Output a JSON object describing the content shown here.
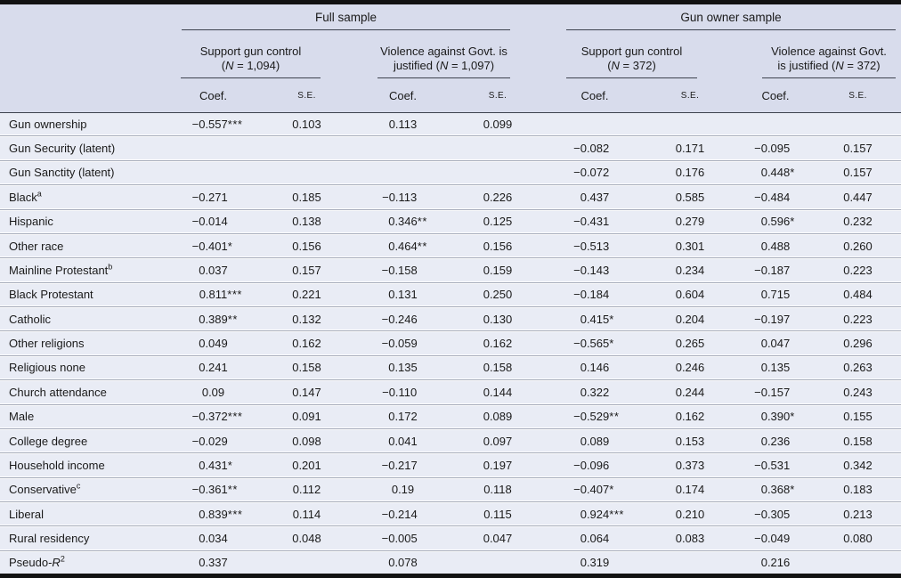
{
  "colors": {
    "header_bg": "#d8dcec",
    "row_bg": "#e9ecf5",
    "bar": "#121212",
    "text": "#1a1a1a",
    "header_rule": "#3d424e",
    "row_divider": "#a3a9b8"
  },
  "table": {
    "groups": [
      {
        "label": "Full sample"
      },
      {
        "label": "Gun owner sample"
      }
    ],
    "subgroups": [
      {
        "lines": [
          [
            {
              "t": "Support gun control"
            }
          ],
          [
            {
              "t": "("
            },
            {
              "t": "N",
              "i": true
            },
            {
              "t": " = 1,094)"
            }
          ]
        ]
      },
      {
        "lines": [
          [
            {
              "t": "Violence against Govt. is"
            }
          ],
          [
            {
              "t": "justified ("
            },
            {
              "t": "N",
              "i": true
            },
            {
              "t": " = 1,097)"
            }
          ]
        ]
      },
      {
        "lines": [
          [
            {
              "t": "Support gun control"
            }
          ],
          [
            {
              "t": "("
            },
            {
              "t": "N",
              "i": true
            },
            {
              "t": " = 372)"
            }
          ]
        ]
      },
      {
        "lines": [
          [
            {
              "t": "Violence against Govt."
            }
          ],
          [
            {
              "t": "is justified ("
            },
            {
              "t": "N",
              "i": true
            },
            {
              "t": " = 372)"
            }
          ]
        ]
      }
    ],
    "col_headers": {
      "coef": "Coef.",
      "se": "S.E."
    },
    "rows": [
      {
        "label": [
          {
            "t": "Gun ownership"
          }
        ],
        "cells": [
          "−0.557***",
          "0.103",
          "0.113",
          "0.099",
          "",
          "",
          "",
          ""
        ]
      },
      {
        "label": [
          {
            "t": "Gun Security (latent)"
          }
        ],
        "cells": [
          "",
          "",
          "",
          "",
          "−0.082",
          "0.171",
          "−0.095",
          "0.157"
        ]
      },
      {
        "label": [
          {
            "t": "Gun Sanctity (latent)"
          }
        ],
        "cells": [
          "",
          "",
          "",
          "",
          "−0.072",
          "0.176",
          "0.448*",
          "0.157"
        ]
      },
      {
        "label": [
          {
            "t": "Black"
          },
          {
            "t": "a",
            "sup": true
          }
        ],
        "cells": [
          "−0.271",
          "0.185",
          "−0.113",
          "0.226",
          "0.437",
          "0.585",
          "−0.484",
          "0.447"
        ]
      },
      {
        "label": [
          {
            "t": "Hispanic"
          }
        ],
        "cells": [
          "−0.014",
          "0.138",
          "0.346**",
          "0.125",
          "−0.431",
          "0.279",
          "0.596*",
          "0.232"
        ]
      },
      {
        "label": [
          {
            "t": "Other race"
          }
        ],
        "cells": [
          "−0.401*",
          "0.156",
          "0.464**",
          "0.156",
          "−0.513",
          "0.301",
          "0.488",
          "0.260"
        ]
      },
      {
        "label": [
          {
            "t": "Mainline Protestant"
          },
          {
            "t": "b",
            "sup": true
          }
        ],
        "cells": [
          "0.037",
          "0.157",
          "−0.158",
          "0.159",
          "−0.143",
          "0.234",
          "−0.187",
          "0.223"
        ]
      },
      {
        "label": [
          {
            "t": "Black Protestant"
          }
        ],
        "cells": [
          "0.811***",
          "0.221",
          "0.131",
          "0.250",
          "−0.184",
          "0.604",
          "0.715",
          "0.484"
        ]
      },
      {
        "label": [
          {
            "t": "Catholic"
          }
        ],
        "cells": [
          "0.389**",
          "0.132",
          "−0.246",
          "0.130",
          "0.415*",
          "0.204",
          "−0.197",
          "0.223"
        ]
      },
      {
        "label": [
          {
            "t": "Other religions"
          }
        ],
        "cells": [
          "0.049",
          "0.162",
          "−0.059",
          "0.162",
          "−0.565*",
          "0.265",
          "0.047",
          "0.296"
        ]
      },
      {
        "label": [
          {
            "t": "Religious none"
          }
        ],
        "cells": [
          "0.241",
          "0.158",
          "0.135",
          "0.158",
          "0.146",
          "0.246",
          "0.135",
          "0.263"
        ]
      },
      {
        "label": [
          {
            "t": "Church attendance"
          }
        ],
        "cells": [
          "0.09",
          "0.147",
          "−0.110",
          "0.144",
          "0.322",
          "0.244",
          "−0.157",
          "0.243"
        ]
      },
      {
        "label": [
          {
            "t": "Male"
          }
        ],
        "cells": [
          "−0.372***",
          "0.091",
          "0.172",
          "0.089",
          "−0.529**",
          "0.162",
          "0.390*",
          "0.155"
        ]
      },
      {
        "label": [
          {
            "t": "College degree"
          }
        ],
        "cells": [
          "−0.029",
          "0.098",
          "0.041",
          "0.097",
          "0.089",
          "0.153",
          "0.236",
          "0.158"
        ]
      },
      {
        "label": [
          {
            "t": "Household income"
          }
        ],
        "cells": [
          "0.431*",
          "0.201",
          "−0.217",
          "0.197",
          "−0.096",
          "0.373",
          "−0.531",
          "0.342"
        ]
      },
      {
        "label": [
          {
            "t": "Conservative"
          },
          {
            "t": "c",
            "sup": true
          }
        ],
        "cells": [
          "−0.361**",
          "0.112",
          "0.19",
          "0.118",
          "−0.407*",
          "0.174",
          "0.368*",
          "0.183"
        ]
      },
      {
        "label": [
          {
            "t": "Liberal"
          }
        ],
        "cells": [
          "0.839***",
          "0.114",
          "−0.214",
          "0.115",
          "0.924***",
          "0.210",
          "−0.305",
          "0.213"
        ]
      },
      {
        "label": [
          {
            "t": "Rural residency"
          }
        ],
        "cells": [
          "0.034",
          "0.048",
          "−0.005",
          "0.047",
          "0.064",
          "0.083",
          "−0.049",
          "0.080"
        ]
      },
      {
        "label": [
          {
            "t": "Pseudo-"
          },
          {
            "t": "R",
            "i": true
          },
          {
            "t": "2",
            "sup": true
          }
        ],
        "cells": [
          "0.337",
          "",
          "0.078",
          "",
          "0.319",
          "",
          "0.216",
          ""
        ]
      }
    ]
  }
}
